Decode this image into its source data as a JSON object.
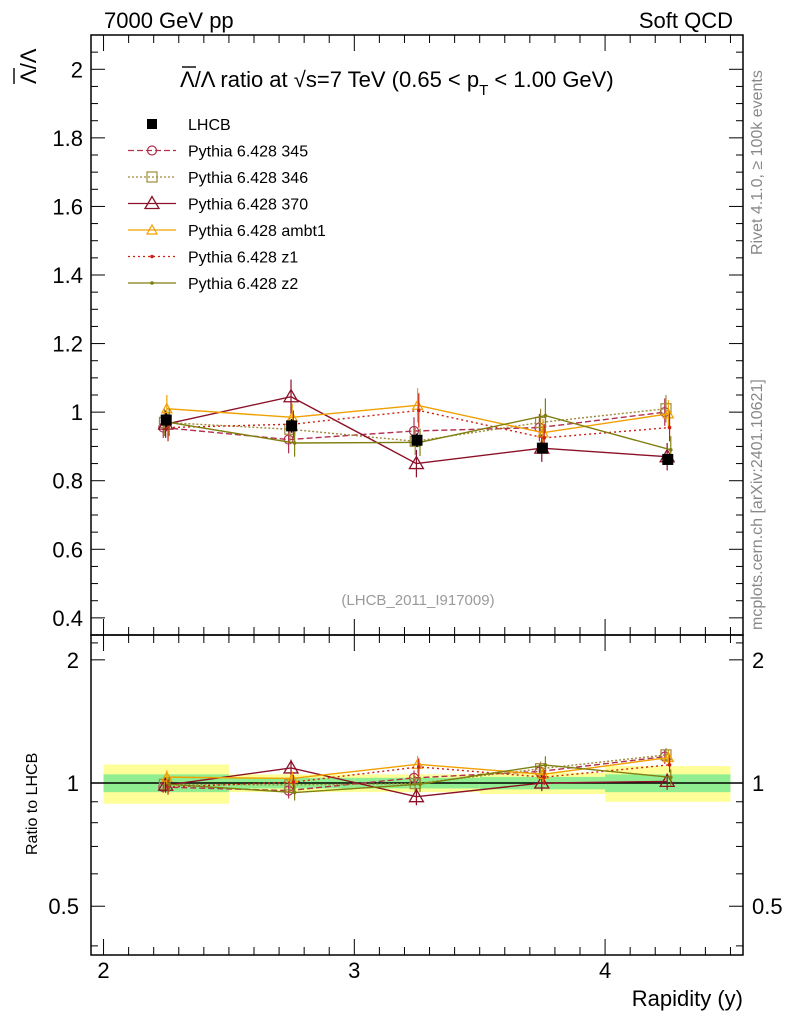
{
  "header": {
    "left": "7000 GeV pp",
    "right": "Soft QCD"
  },
  "side_labels": {
    "top": "Rivet 4.1.0, ≥ 100k events",
    "bottom": "mcplots.cern.ch [arXiv:2401.10621]"
  },
  "chart_data": {
    "type": "line",
    "title": "Λ̅/Λ ratio at √s=7 TeV (0.65 < p_T < 1.00 GeV)",
    "title_parts": {
      "prefix": "Λ/Λ ratio at ",
      "sqrt": "√",
      "s_text": "s=7 TeV (0.65 < p",
      "sub": "T",
      "suffix": " < 1.00 GeV)"
    },
    "ylabel": "Λ/Λ",
    "xlabel": "Rapidity (y)",
    "ratio_ylabel": "Ratio to LHCB",
    "watermark": "(LHCB_2011_I917009)",
    "xlim": [
      1.95,
      4.55
    ],
    "ylim": [
      0.35,
      2.1
    ],
    "ratio_ylim": [
      0.38,
      2.3
    ],
    "x_ticks": [
      2,
      3,
      4
    ],
    "x_tick_labels": [
      "2",
      "3",
      "4"
    ],
    "y_ticks": [
      0.4,
      0.6,
      0.8,
      1.0,
      1.2,
      1.4,
      1.6,
      1.8,
      2.0
    ],
    "y_tick_labels": [
      "0.4",
      "0.6",
      "0.8",
      "1",
      "1.2",
      "1.4",
      "1.6",
      "1.8",
      "2"
    ],
    "ratio_ticks": [
      0.5,
      1,
      2
    ],
    "ratio_tick_labels": [
      "0.5",
      "1",
      "2"
    ],
    "data": {
      "name": "LHCB",
      "x": [
        2.25,
        2.75,
        3.25,
        3.75,
        4.25
      ],
      "xerr": 0.25,
      "y": [
        0.977,
        0.96,
        0.918,
        0.895,
        0.862
      ],
      "yerr": [
        0.02,
        0.02,
        0.02,
        0.015,
        0.015
      ],
      "band_inner": [
        0.05,
        0.03,
        0.03,
        0.035,
        0.05
      ],
      "band_outer": [
        0.11,
        0.05,
        0.05,
        0.06,
        0.1
      ]
    },
    "series": [
      {
        "name": "Pythia 6.428 345",
        "color": "#b03050",
        "dash": "6,3",
        "marker": "circle",
        "values": [
          0.955,
          0.92,
          0.945,
          0.955,
          1.0
        ],
        "err": [
          0.03,
          0.04,
          0.04,
          0.04,
          0.04
        ]
      },
      {
        "name": "Pythia 6.428 346",
        "color": "#a08a3a",
        "dash": "2,2",
        "marker": "square",
        "values": [
          0.97,
          0.95,
          0.915,
          0.97,
          1.01
        ],
        "err": [
          0.04,
          0.04,
          0.04,
          0.04,
          0.04
        ]
      },
      {
        "name": "Pythia 6.428 370",
        "color": "#8b1028",
        "dash": "",
        "marker": "triangle",
        "values": [
          0.965,
          1.045,
          0.85,
          0.895,
          0.87
        ],
        "err": [
          0.04,
          0.05,
          0.04,
          0.04,
          0.04
        ]
      },
      {
        "name": "Pythia 6.428 ambt1",
        "color": "#f0a000",
        "dash": "",
        "marker": "triangle-small",
        "values": [
          1.01,
          0.985,
          1.02,
          0.94,
          0.995
        ],
        "err": [
          0.04,
          0.04,
          0.05,
          0.04,
          0.04
        ]
      },
      {
        "name": "Pythia 6.428 z1",
        "color": "#cc2010",
        "dash": "2,3",
        "marker": "dot",
        "values": [
          0.955,
          0.965,
          1.005,
          0.925,
          0.955
        ],
        "err": [
          0.04,
          0.04,
          0.05,
          0.04,
          0.04
        ]
      },
      {
        "name": "Pythia 6.428 z2",
        "color": "#7f7f10",
        "dash": "",
        "marker": "dot",
        "values": [
          0.97,
          0.91,
          0.912,
          0.99,
          0.89
        ],
        "err": [
          0.04,
          0.04,
          0.04,
          0.05,
          0.04
        ]
      }
    ]
  }
}
